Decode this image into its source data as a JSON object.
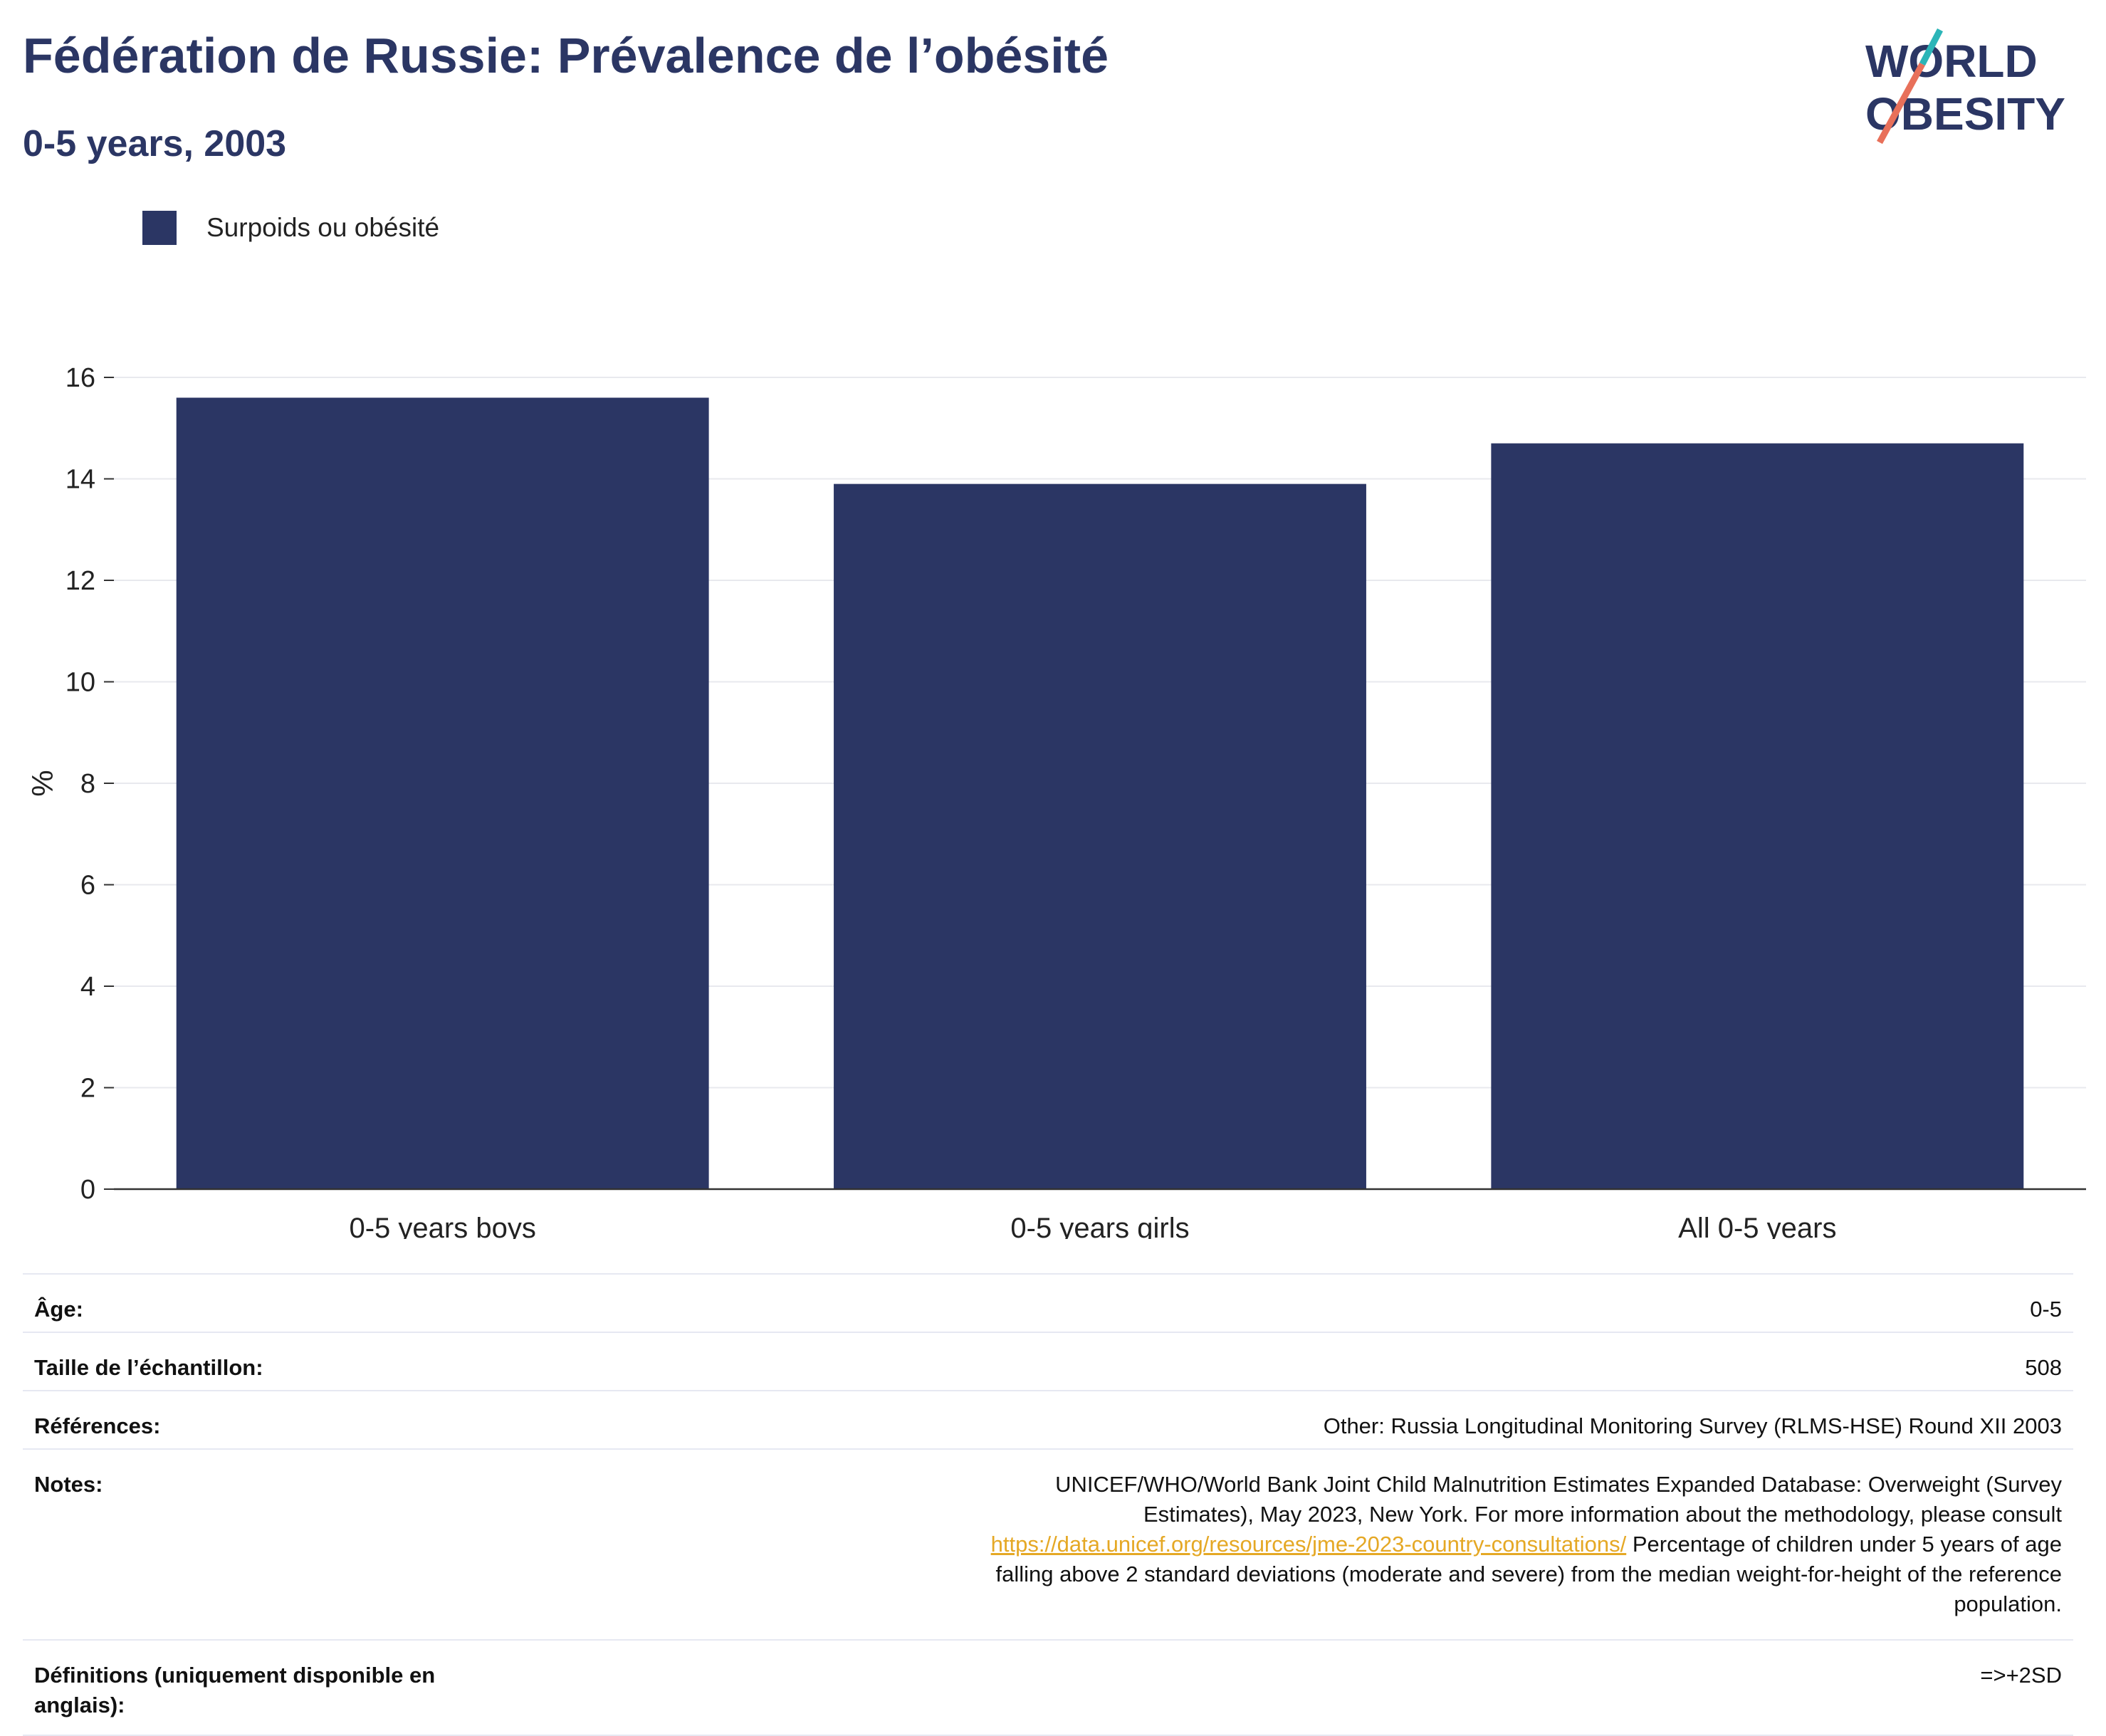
{
  "header": {
    "title": "Fédération de Russie: Prévalence de l’obésité",
    "subtitle": "0-5 years, 2003"
  },
  "logo": {
    "line1": "WORLD",
    "line2": "OBESITY"
  },
  "legend": {
    "label": "Surpoids ou obésité",
    "color": "#2b3664"
  },
  "chart_data": {
    "type": "bar",
    "categories": [
      "0-5 years boys",
      "0-5 years girls",
      "All 0-5 years"
    ],
    "series": [
      {
        "name": "Surpoids ou obésité",
        "values": [
          15.6,
          13.9,
          14.7
        ],
        "color": "#2b3664"
      }
    ],
    "ylabel": "%",
    "ylim": [
      0,
      16
    ],
    "yticks": [
      0,
      2,
      4,
      6,
      8,
      10,
      12,
      14,
      16
    ],
    "grid": true,
    "legend_position": "top-left"
  },
  "info": {
    "age": {
      "label": "Âge:",
      "value": "0-5"
    },
    "sample": {
      "label": "Taille de l’échantillon:",
      "value": "508"
    },
    "refs": {
      "label": "Références:",
      "value": "Other: Russia Longitudinal Monitoring Survey (RLMS-HSE) Round XII 2003"
    },
    "notes": {
      "label": "Notes:",
      "text1": "UNICEF/WHO/World Bank Joint Child Malnutrition Estimates Expanded Database: Overweight (Survey Estimates), May 2023, New York. For more information about the methodology, please consult ",
      "link": "https://data.unicef.org/resources/jme-2023-country-consultations/",
      "text2": " Percentage of children under 5 years of age falling above 2 standard deviations (moderate and severe) from the median weight-for-height of the reference population."
    },
    "definitions": {
      "label": "Définitions (uniquement disponible en anglais):",
      "value": "=>+2SD"
    }
  }
}
